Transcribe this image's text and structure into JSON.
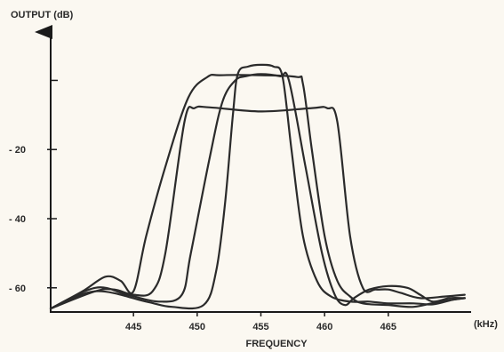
{
  "chart_data": {
    "type": "line",
    "title": "",
    "ylabel": "OUTPUT (dB)",
    "xlabel": "FREQUENCY",
    "x_unit": "(kHz)",
    "xlim": [
      438.5,
      471.5
    ],
    "ylim": [
      -67,
      14
    ],
    "x_ticks": [
      445,
      450,
      455,
      460,
      465
    ],
    "x_tick_labels": [
      "445",
      "450",
      "455",
      "460",
      "465"
    ],
    "y_ticks": [
      -20,
      -40,
      -60
    ],
    "y_tick_labels": [
      "- 20",
      "- 40",
      "- 60"
    ],
    "y_minor_ticks": [
      0
    ],
    "grid": false,
    "legend": "none",
    "colors": {
      "curve": "#2b2b2b",
      "axis": "#1a1a1a",
      "text": "#2a2a2a",
      "background": "#fbf8f1"
    },
    "series": [
      {
        "points": [
          [
            438.5,
            -66
          ],
          [
            442,
            -61
          ],
          [
            443.5,
            -60.5
          ],
          [
            445,
            -62
          ],
          [
            446.5,
            -61
          ],
          [
            447.5,
            -50
          ],
          [
            449,
            -12
          ],
          [
            449.8,
            -8
          ],
          [
            451,
            -7.8
          ],
          [
            455,
            -9
          ],
          [
            459,
            -8
          ],
          [
            460.2,
            -8
          ],
          [
            461,
            -12
          ],
          [
            462,
            -45
          ],
          [
            463,
            -60
          ],
          [
            464,
            -60.5
          ],
          [
            465,
            -60.5
          ],
          [
            466,
            -61.5
          ],
          [
            467.5,
            -63
          ],
          [
            469.5,
            -62.5
          ],
          [
            471,
            -62
          ]
        ]
      },
      {
        "points": [
          [
            438.5,
            -66
          ],
          [
            441,
            -61
          ],
          [
            442.8,
            -56.8
          ],
          [
            444,
            -58
          ],
          [
            445,
            -61
          ],
          [
            446,
            -45
          ],
          [
            447.5,
            -25
          ],
          [
            449.3,
            -5
          ],
          [
            450.8,
            1
          ],
          [
            451.8,
            1.5
          ],
          [
            455,
            1.5
          ],
          [
            457.8,
            1
          ],
          [
            458.3,
            -1
          ],
          [
            459,
            -20
          ],
          [
            460,
            -45
          ],
          [
            461,
            -58
          ],
          [
            462,
            -62.5
          ],
          [
            463,
            -64.5
          ],
          [
            465,
            -65
          ],
          [
            467,
            -65.5
          ],
          [
            469,
            -64
          ],
          [
            471,
            -63
          ]
        ]
      },
      {
        "points": [
          [
            438.5,
            -66
          ],
          [
            442,
            -60
          ],
          [
            444.5,
            -62
          ],
          [
            447,
            -64
          ],
          [
            448.8,
            -62
          ],
          [
            449.5,
            -50
          ],
          [
            451,
            -22
          ],
          [
            452,
            -6
          ],
          [
            453,
            0
          ],
          [
            453.8,
            1.2
          ],
          [
            455,
            1.8
          ],
          [
            456.5,
            1.2
          ],
          [
            457.2,
            0
          ],
          [
            458.5,
            -25
          ],
          [
            459.8,
            -50
          ],
          [
            460.8,
            -62
          ],
          [
            461.6,
            -65
          ],
          [
            462.3,
            -63
          ],
          [
            463.5,
            -60.5
          ],
          [
            465,
            -59.5
          ],
          [
            466.5,
            -60
          ],
          [
            467.5,
            -62
          ],
          [
            468.5,
            -64
          ],
          [
            469.8,
            -63
          ],
          [
            471,
            -63
          ]
        ]
      },
      {
        "points": [
          [
            438.5,
            -66
          ],
          [
            442,
            -61
          ],
          [
            446,
            -64
          ],
          [
            448,
            -65.5
          ],
          [
            450.5,
            -65
          ],
          [
            451.5,
            -55
          ],
          [
            452.2,
            -35
          ],
          [
            452.8,
            -10
          ],
          [
            453.2,
            2
          ],
          [
            454,
            4
          ],
          [
            455,
            4.5
          ],
          [
            456,
            4
          ],
          [
            456.7,
            1
          ],
          [
            457.4,
            -20
          ],
          [
            458.3,
            -45
          ],
          [
            459.4,
            -58
          ],
          [
            460.5,
            -62.5
          ],
          [
            462,
            -64
          ],
          [
            463.5,
            -64
          ],
          [
            465,
            -64.5
          ],
          [
            467,
            -64.5
          ],
          [
            468.5,
            -64.8
          ],
          [
            470,
            -63.5
          ],
          [
            471,
            -63
          ]
        ]
      }
    ]
  }
}
